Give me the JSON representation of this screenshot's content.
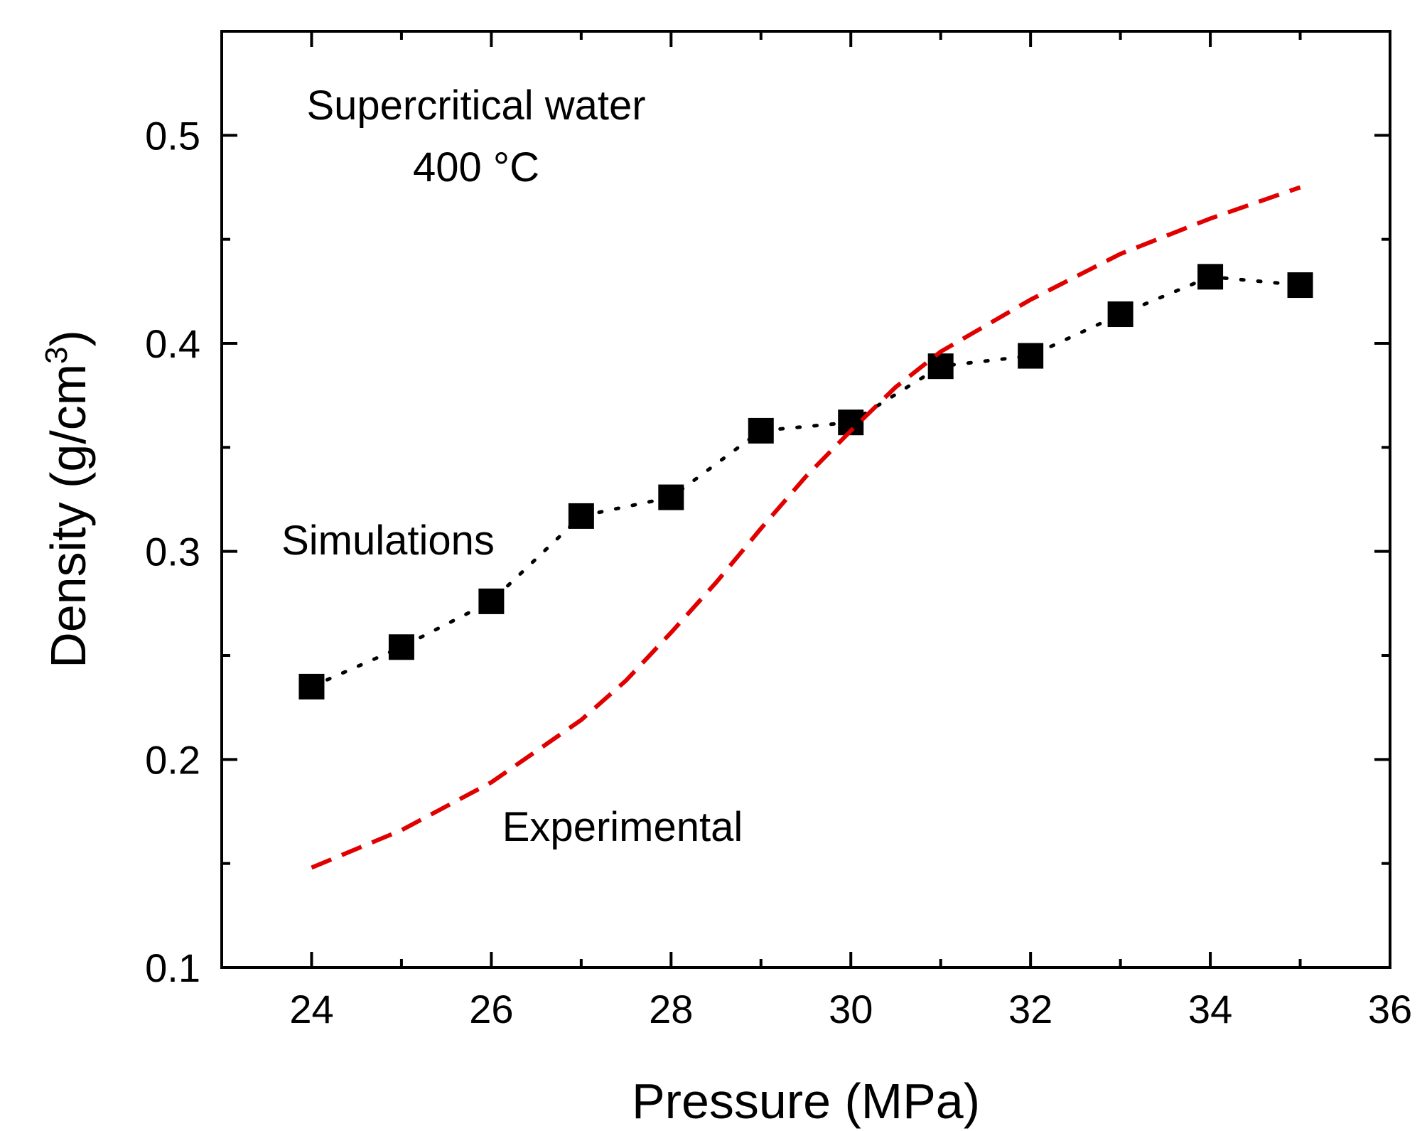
{
  "chart_data": {
    "type": "scatter",
    "xlabel": "Pressure (MPa)",
    "ylabel_main": "Density (g/cm",
    "ylabel_sup": "3",
    "ylabel_close": ")",
    "xlim": [
      23,
      36
    ],
    "ylim": [
      0.1,
      0.55
    ],
    "xticks": [
      24,
      26,
      28,
      30,
      32,
      34,
      36
    ],
    "xtick_labels": [
      "24",
      "26",
      "28",
      "30",
      "32",
      "34",
      "36"
    ],
    "xminor": [
      23,
      25,
      27,
      29,
      31,
      33,
      35
    ],
    "yticks": [
      0.1,
      0.2,
      0.3,
      0.4,
      0.5
    ],
    "ytick_labels": [
      "0.1",
      "0.2",
      "0.3",
      "0.4",
      "0.5"
    ],
    "yminor": [
      0.15,
      0.25,
      0.35,
      0.45
    ],
    "annotations": {
      "title_line1": "Supercritical water",
      "title_line2": "400 °C",
      "simulations": "Simulations",
      "experimental": "Experimental"
    },
    "series": [
      {
        "name": "Simulations",
        "style": "square-markers-dotted",
        "color": "#000000",
        "x": [
          24,
          25,
          26,
          27,
          28,
          29,
          30,
          31,
          32,
          33,
          34,
          35
        ],
        "y": [
          0.235,
          0.254,
          0.276,
          0.317,
          0.326,
          0.358,
          0.362,
          0.389,
          0.394,
          0.414,
          0.432,
          0.428
        ]
      },
      {
        "name": "Experimental",
        "style": "dashed-line",
        "color": "#e00000",
        "x": [
          24,
          25,
          26,
          27,
          27.5,
          28,
          28.5,
          29,
          29.5,
          30,
          30.5,
          31,
          32,
          33,
          34,
          35
        ],
        "y": [
          0.148,
          0.166,
          0.189,
          0.219,
          0.238,
          0.261,
          0.285,
          0.311,
          0.336,
          0.358,
          0.379,
          0.396,
          0.421,
          0.443,
          0.46,
          0.475
        ]
      }
    ]
  }
}
